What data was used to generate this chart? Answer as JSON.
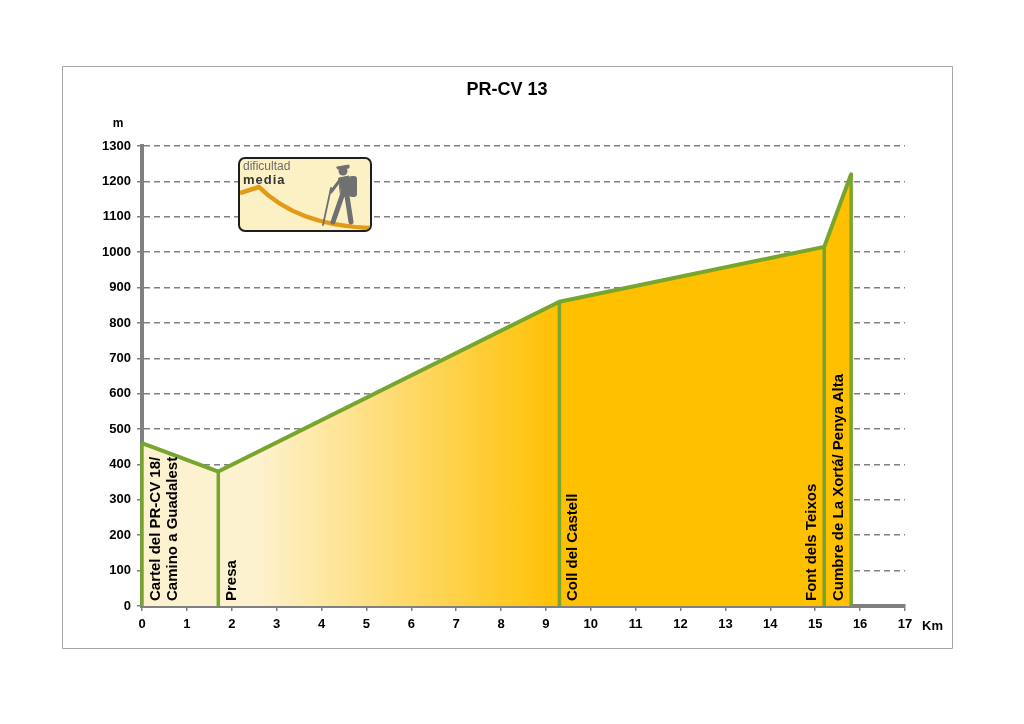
{
  "chart_data": {
    "type": "area",
    "title": "PR-CV 13",
    "xlabel": "Km",
    "ylabel": "m",
    "x": [
      0,
      1.7,
      9.3,
      15.2,
      15.8
    ],
    "values": [
      460,
      380,
      860,
      1015,
      1220
    ],
    "color": "#ffc000",
    "xlim": [
      0,
      17
    ],
    "xticks": [
      0,
      1,
      2,
      3,
      4,
      5,
      6,
      7,
      8,
      9,
      10,
      11,
      12,
      13,
      14,
      15,
      16,
      17
    ],
    "ylim": [
      0,
      1300
    ],
    "yticks": [
      0,
      100,
      200,
      300,
      400,
      500,
      600,
      700,
      800,
      900,
      1000,
      1100,
      1200,
      1300
    ],
    "grid": "y",
    "ref_lines": [
      {
        "axis": "x",
        "value": 0,
        "label": "Cartel del PR-CV 18/ Camino a Guadalest",
        "color": "#77a52d"
      },
      {
        "axis": "x",
        "value": 1.7,
        "label": "Presa",
        "color": "#77a52d"
      },
      {
        "axis": "x",
        "value": 9.3,
        "label": "Coll del Castell",
        "color": "#77a52d"
      },
      {
        "axis": "x",
        "value": 15.2,
        "label": "Font dels Teixos",
        "color": "#77a52d"
      },
      {
        "axis": "x",
        "value": 15.8,
        "label": "Cumbre de La Xortá/ Penya Alta",
        "color": "#77a52d"
      }
    ],
    "annotations": [
      "dificultad media"
    ]
  }
}
